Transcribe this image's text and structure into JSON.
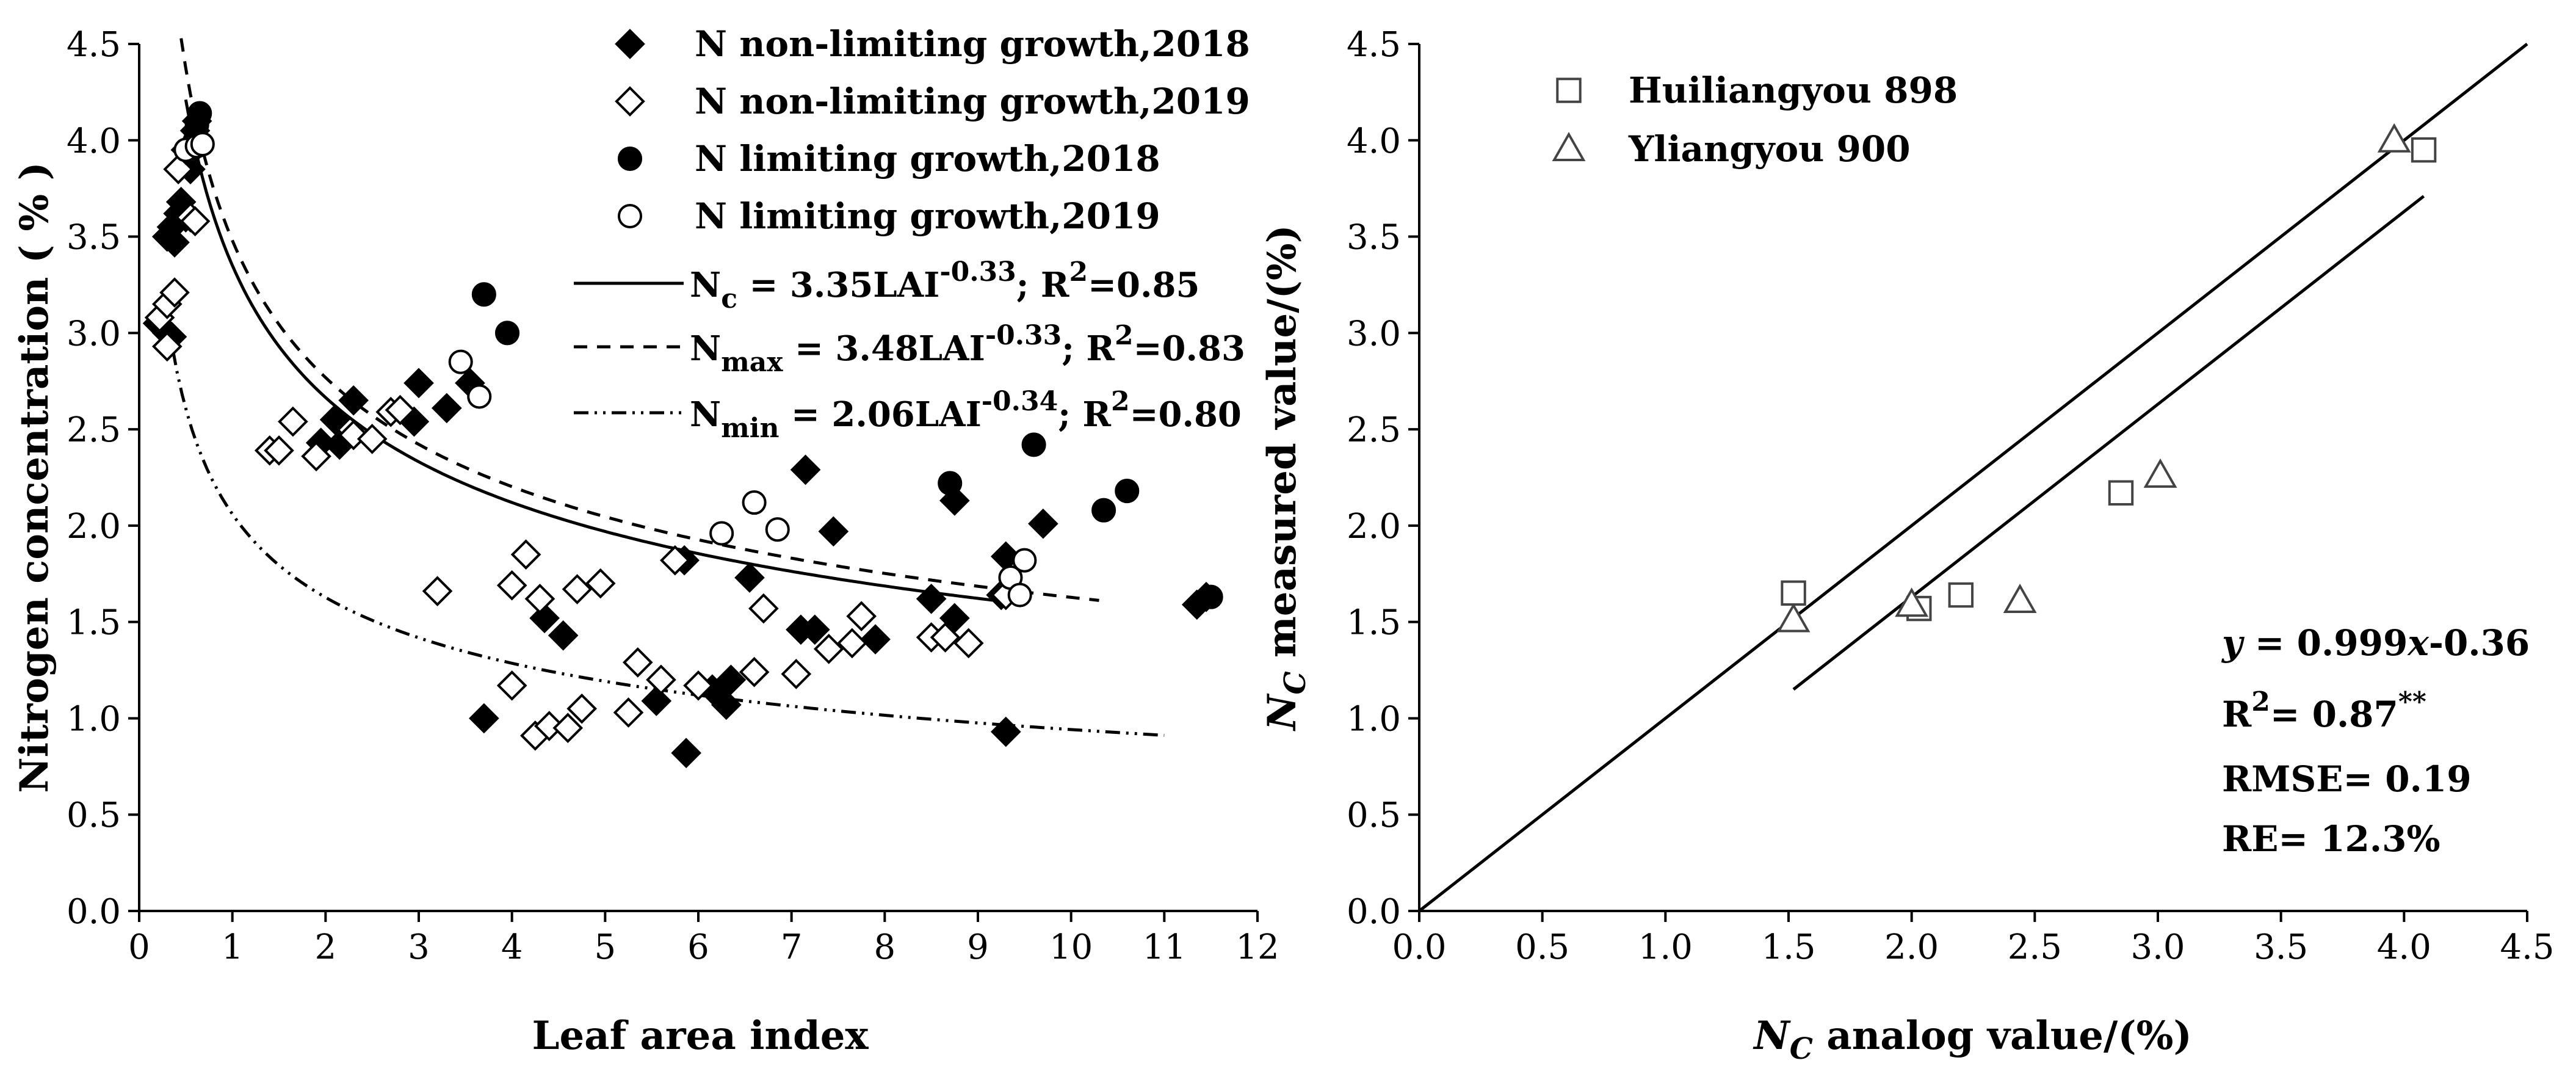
{
  "chart_data": [
    {
      "type": "scatter",
      "xlabel": "Leaf area index",
      "ylabel": "Nitrogen concentration ( % )",
      "xlim": [
        0,
        12
      ],
      "ylim": [
        0,
        4.5
      ],
      "xticks": [
        "0",
        "1",
        "2",
        "3",
        "4",
        "5",
        "6",
        "7",
        "8",
        "9",
        "10",
        "11",
        "12"
      ],
      "yticks": [
        "0.0",
        "0.5",
        "1.0",
        "1.5",
        "2.0",
        "2.5",
        "3.0",
        "3.5",
        "4.0",
        "4.5"
      ],
      "legend_position": "top-right",
      "series": [
        {
          "name": "N non-limiting growth,2018",
          "marker": "diamond-filled",
          "points": [
            [
              0.2,
              3.05
            ],
            [
              0.3,
              3.0
            ],
            [
              0.35,
              2.98
            ],
            [
              0.3,
              3.5
            ],
            [
              0.35,
              3.55
            ],
            [
              0.38,
              3.47
            ],
            [
              0.42,
              3.62
            ],
            [
              0.45,
              3.68
            ],
            [
              0.5,
              3.6
            ],
            [
              0.55,
              3.85
            ],
            [
              0.58,
              3.95
            ],
            [
              0.6,
              4.05
            ],
            [
              0.62,
              4.1
            ],
            [
              1.95,
              2.43
            ],
            [
              2.15,
              2.42
            ],
            [
              2.1,
              2.55
            ],
            [
              2.3,
              2.65
            ],
            [
              3.0,
              2.74
            ],
            [
              2.95,
              2.54
            ],
            [
              3.3,
              2.61
            ],
            [
              3.55,
              2.74
            ],
            [
              3.7,
              1.0
            ],
            [
              4.35,
              1.52
            ],
            [
              4.55,
              1.43
            ],
            [
              5.55,
              1.09
            ],
            [
              5.85,
              1.82
            ],
            [
              5.87,
              0.82
            ],
            [
              6.15,
              1.15
            ],
            [
              6.3,
              1.07
            ],
            [
              6.35,
              1.2
            ],
            [
              6.55,
              1.73
            ],
            [
              7.1,
              1.46
            ],
            [
              7.15,
              2.29
            ],
            [
              7.25,
              1.46
            ],
            [
              7.45,
              1.97
            ],
            [
              7.9,
              1.41
            ],
            [
              8.5,
              1.62
            ],
            [
              8.75,
              2.13
            ],
            [
              8.75,
              1.52
            ],
            [
              9.25,
              1.64
            ],
            [
              9.3,
              1.84
            ],
            [
              9.3,
              0.93
            ],
            [
              9.7,
              2.01
            ],
            [
              11.35,
              1.59
            ],
            [
              11.45,
              1.63
            ]
          ]
        },
        {
          "name": "N non-limiting growth,2019",
          "marker": "diamond-open",
          "points": [
            [
              0.22,
              3.08
            ],
            [
              0.3,
              2.93
            ],
            [
              0.3,
              3.15
            ],
            [
              0.38,
              3.21
            ],
            [
              0.42,
              3.85
            ],
            [
              0.5,
              3.95
            ],
            [
              0.55,
              3.6
            ],
            [
              0.6,
              3.58
            ],
            [
              1.4,
              2.39
            ],
            [
              1.5,
              2.39
            ],
            [
              1.65,
              2.54
            ],
            [
              1.9,
              2.36
            ],
            [
              2.3,
              2.47
            ],
            [
              2.5,
              2.45
            ],
            [
              2.7,
              2.59
            ],
            [
              2.8,
              2.6
            ],
            [
              3.2,
              1.66
            ],
            [
              4.0,
              1.69
            ],
            [
              4.0,
              1.17
            ],
            [
              4.15,
              1.85
            ],
            [
              4.25,
              0.91
            ],
            [
              4.3,
              1.62
            ],
            [
              4.4,
              0.96
            ],
            [
              4.6,
              0.95
            ],
            [
              4.7,
              1.67
            ],
            [
              4.75,
              1.05
            ],
            [
              4.95,
              1.7
            ],
            [
              5.25,
              1.03
            ],
            [
              5.35,
              1.29
            ],
            [
              5.6,
              1.2
            ],
            [
              5.75,
              1.82
            ],
            [
              6.0,
              1.17
            ],
            [
              6.6,
              1.24
            ],
            [
              6.7,
              1.57
            ],
            [
              7.05,
              1.23
            ],
            [
              7.4,
              1.36
            ],
            [
              7.65,
              1.39
            ],
            [
              7.75,
              1.53
            ],
            [
              8.5,
              1.42
            ],
            [
              8.65,
              1.42
            ],
            [
              8.9,
              1.39
            ],
            [
              9.3,
              1.64
            ]
          ]
        },
        {
          "name": "N limiting growth,2018",
          "marker": "circle-filled",
          "points": [
            [
              0.55,
              3.95
            ],
            [
              0.6,
              4.0
            ],
            [
              0.62,
              4.08
            ],
            [
              0.65,
              4.14
            ],
            [
              3.7,
              3.2
            ],
            [
              3.95,
              3.0
            ],
            [
              8.7,
              2.22
            ],
            [
              9.6,
              2.42
            ],
            [
              10.35,
              2.08
            ],
            [
              10.6,
              2.18
            ],
            [
              11.5,
              1.63
            ]
          ]
        },
        {
          "name": "N limiting growth,2019",
          "marker": "circle-open",
          "points": [
            [
              0.5,
              3.95
            ],
            [
              0.62,
              3.97
            ],
            [
              0.68,
              3.98
            ],
            [
              3.45,
              2.85
            ],
            [
              3.65,
              2.67
            ],
            [
              6.25,
              1.96
            ],
            [
              6.6,
              2.12
            ],
            [
              6.85,
              1.98
            ],
            [
              9.35,
              1.73
            ],
            [
              9.45,
              1.64
            ],
            [
              9.5,
              1.82
            ]
          ]
        }
      ],
      "curves": [
        {
          "name": "Nc",
          "style": "solid",
          "a": 3.35,
          "b": -0.33,
          "x_range": [
            0.5,
            9.4
          ],
          "label_main": "N",
          "label_sub": "c",
          "label_eq": " = 3.35LAI",
          "label_exp": "-0.33",
          "label_r2": "; R",
          "label_r2_sup": "2",
          "label_r2_val": "=0.85"
        },
        {
          "name": "Nmax",
          "style": "dashed",
          "a": 3.48,
          "b": -0.33,
          "x_range": [
            0.45,
            10.3
          ],
          "label_main": "N",
          "label_sub": "max",
          "label_eq": " = 3.48LAI",
          "label_exp": "-0.33",
          "label_r2": "; R",
          "label_r2_sup": "2",
          "label_r2_val": "=0.83"
        },
        {
          "name": "Nmin",
          "style": "dashdot",
          "a": 2.06,
          "b": -0.34,
          "x_range": [
            0.3,
            11.0
          ],
          "label_main": "N",
          "label_sub": "min",
          "label_eq": " = 2.06LAI",
          "label_exp": "-0.34",
          "label_r2": "; R",
          "label_r2_sup": "2",
          "label_r2_val": "=0.80"
        }
      ]
    },
    {
      "type": "scatter",
      "xlabel_main": "N",
      "xlabel_sub": "C",
      "xlabel_rest": " analog value/(%)",
      "ylabel_main": "N",
      "ylabel_sub": "C",
      "ylabel_rest": " measured value/(%)",
      "xlim": [
        0,
        4.5
      ],
      "ylim": [
        0,
        4.5
      ],
      "xticks": [
        "0.0",
        "0.5",
        "1.0",
        "1.5",
        "2.0",
        "2.5",
        "3.0",
        "3.5",
        "4.0",
        "4.5"
      ],
      "yticks": [
        "0.0",
        "0.5",
        "1.0",
        "1.5",
        "2.0",
        "2.5",
        "3.0",
        "3.5",
        "4.0",
        "4.5"
      ],
      "legend_position": "top-left",
      "series": [
        {
          "name": "Huiliangyou 898",
          "marker": "square-open",
          "points": [
            [
              1.52,
              1.65
            ],
            [
              2.03,
              1.57
            ],
            [
              2.2,
              1.64
            ],
            [
              2.85,
              2.17
            ],
            [
              4.08,
              3.95
            ]
          ]
        },
        {
          "name": "Yliangyou 900",
          "marker": "triangle-open",
          "points": [
            [
              1.52,
              1.51
            ],
            [
              2.0,
              1.59
            ],
            [
              2.44,
              1.61
            ],
            [
              3.01,
              2.26
            ],
            [
              3.96,
              4.0
            ]
          ]
        }
      ],
      "lines": [
        {
          "name": "1:1 line",
          "x": [
            0,
            4.5
          ],
          "y": [
            0,
            4.5
          ]
        },
        {
          "name": "fit line",
          "x": [
            1.52,
            4.08
          ],
          "y": [
            1.15,
            3.71
          ]
        }
      ],
      "annotations": {
        "eq_y": "y",
        "eq_rest": " = 0.999",
        "eq_x": "x",
        "eq_tail": "-0.36",
        "r2_main": "R",
        "r2_sup": "2",
        "r2_val": "= 0.87",
        "r2_sig": "**",
        "rmse": "RMSE= 0.19",
        "re": "RE= 12.3%"
      }
    }
  ]
}
